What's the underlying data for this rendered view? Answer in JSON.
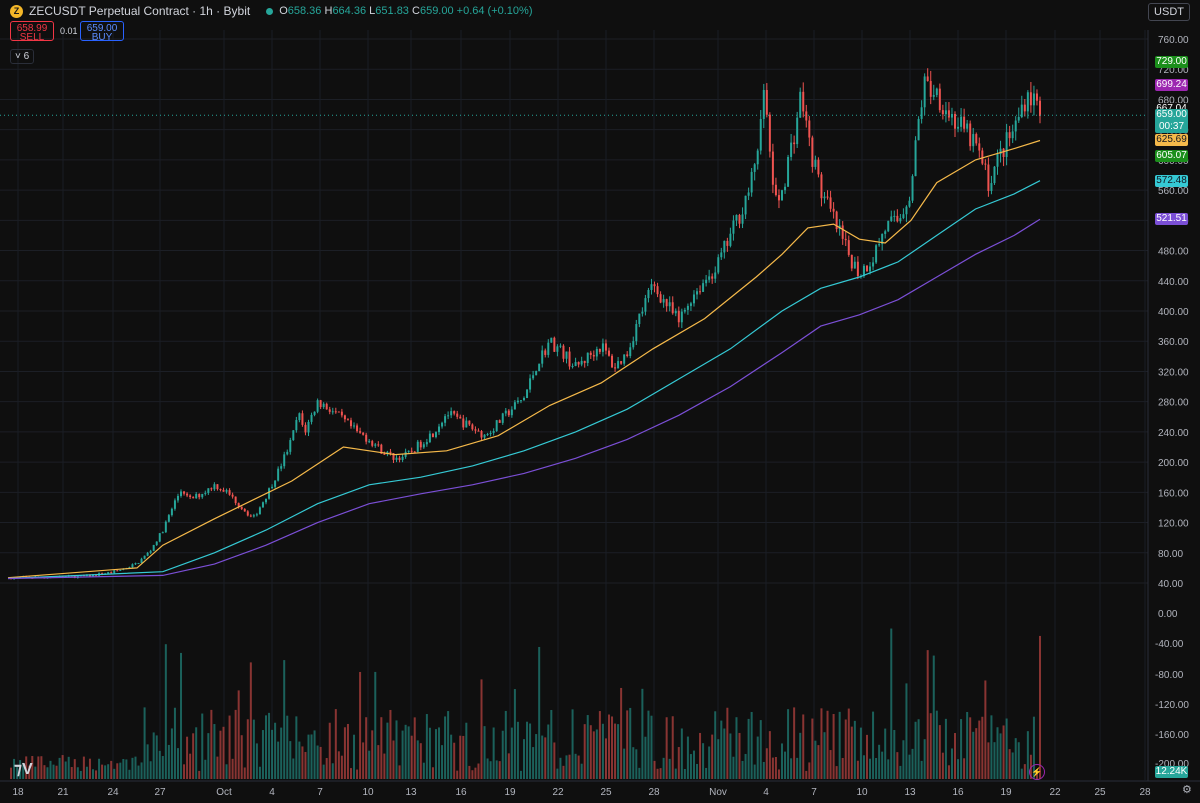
{
  "header": {
    "title": "ZECUSDT Perpetual Contract · 1h · Bybit",
    "ohlc": [
      {
        "k": "O",
        "v": "658.36"
      },
      {
        "k": "H",
        "v": "664.36"
      },
      {
        "k": "L",
        "v": "651.83"
      },
      {
        "k": "C",
        "v": "659.00 +0.64 (+0.10%)"
      }
    ]
  },
  "trade": {
    "sell_price": "658.99",
    "sell_label": "SELL",
    "spread": "0.01",
    "buy_price": "659.00",
    "buy_label": "BUY"
  },
  "indicators_toggle": "6",
  "currency": "USDT",
  "volume_label": "12.24K",
  "colors": {
    "bg": "#0f0f0f",
    "up": "#26a69a",
    "down": "#ef5350",
    "ema_orange": "#f5b94a",
    "ema_cyan": "#35c9d4",
    "ema_purple": "#7b4fd6"
  },
  "price_labels": [
    {
      "text": "729.00",
      "value": 729.0,
      "bg": "#1b8f1b",
      "fg": "#ffffff"
    },
    {
      "text": "699.24",
      "value": 699.24,
      "bg": "#9c27b0",
      "fg": "#ffffff"
    },
    {
      "text": "667.04",
      "value": 667.04,
      "bg": "#0f0f0f",
      "fg": "#ffffff"
    },
    {
      "text": "659.00",
      "value": 659.0,
      "bg": "#26a69a",
      "fg": "#ffffff",
      "sub": "00:37"
    },
    {
      "text": "625.69",
      "value": 625.69,
      "bg": "#f5b94a",
      "fg": "#131722"
    },
    {
      "text": "605.07",
      "value": 605.07,
      "bg": "#1b8f1b",
      "fg": "#ffffff"
    },
    {
      "text": "572.48",
      "value": 572.48,
      "bg": "#35c9d4",
      "fg": "#131722"
    },
    {
      "text": "521.51",
      "value": 521.51,
      "bg": "#7b4fd6",
      "fg": "#ffffff"
    }
  ],
  "chart_data": {
    "type": "candlestick",
    "title": "ZECUSDT Perpetual Contract · 1h · Bybit",
    "ylim": [
      40,
      760
    ],
    "yticks": [
      760,
      720,
      680,
      640,
      600,
      560,
      520,
      480,
      440,
      400,
      360,
      320,
      280,
      240,
      200,
      160,
      120,
      80,
      40,
      0
    ],
    "osc_ticks": [
      -40,
      -80,
      -120,
      -160,
      -200
    ],
    "xticks": [
      "18",
      "21",
      "24",
      "27",
      "Oct",
      "4",
      "7",
      "10",
      "13",
      "16",
      "19",
      "22",
      "25",
      "28",
      "Nov",
      "4",
      "7",
      "10",
      "13",
      "16",
      "19",
      "22",
      "25",
      "28"
    ],
    "close_path": [
      [
        0,
        47
      ],
      [
        4,
        48
      ],
      [
        6,
        49
      ],
      [
        8,
        54
      ],
      [
        9,
        59
      ],
      [
        10,
        66
      ],
      [
        11,
        82
      ],
      [
        12,
        110
      ],
      [
        13,
        150
      ],
      [
        13.5,
        165
      ],
      [
        14,
        150
      ],
      [
        15,
        158
      ],
      [
        16,
        170
      ],
      [
        17,
        160
      ],
      [
        18,
        142
      ],
      [
        19,
        125
      ],
      [
        20,
        155
      ],
      [
        21,
        190
      ],
      [
        22,
        230
      ],
      [
        22.5,
        265
      ],
      [
        23,
        240
      ],
      [
        24,
        280
      ],
      [
        25,
        270
      ],
      [
        26,
        255
      ],
      [
        27,
        240
      ],
      [
        28,
        230
      ],
      [
        29,
        215
      ],
      [
        30,
        205
      ],
      [
        31,
        210
      ],
      [
        32,
        225
      ],
      [
        33,
        240
      ],
      [
        34,
        265
      ],
      [
        35,
        255
      ],
      [
        36,
        245
      ],
      [
        37,
        235
      ],
      [
        38,
        252
      ],
      [
        39,
        270
      ],
      [
        40,
        285
      ],
      [
        41,
        330
      ],
      [
        42,
        360
      ],
      [
        43,
        345
      ],
      [
        44,
        325
      ],
      [
        45,
        340
      ],
      [
        46,
        355
      ],
      [
        47,
        325
      ],
      [
        48,
        345
      ],
      [
        49,
        395
      ],
      [
        50,
        435
      ],
      [
        51,
        410
      ],
      [
        52,
        385
      ],
      [
        53,
        420
      ],
      [
        54,
        440
      ],
      [
        55,
        460
      ],
      [
        56,
        500
      ],
      [
        57,
        540
      ],
      [
        58,
        590
      ],
      [
        58.5,
        700
      ],
      [
        59,
        620
      ],
      [
        59.5,
        540
      ],
      [
        60,
        560
      ],
      [
        61,
        640
      ],
      [
        61.5,
        690
      ],
      [
        62,
        630
      ],
      [
        63,
        560
      ],
      [
        64,
        520
      ],
      [
        65,
        480
      ],
      [
        66,
        450
      ],
      [
        67,
        470
      ],
      [
        68,
        510
      ],
      [
        69,
        520
      ],
      [
        70,
        560
      ],
      [
        70.5,
        640
      ],
      [
        71,
        700
      ],
      [
        72,
        690
      ],
      [
        73,
        660
      ],
      [
        74,
        640
      ],
      [
        75,
        620
      ],
      [
        76,
        570
      ],
      [
        77,
        610
      ],
      [
        78,
        640
      ],
      [
        79,
        690
      ],
      [
        80,
        670
      ]
    ],
    "ema_orange": [
      [
        0,
        47
      ],
      [
        10,
        60
      ],
      [
        12,
        90
      ],
      [
        16,
        125
      ],
      [
        22,
        175
      ],
      [
        26,
        220
      ],
      [
        30,
        210
      ],
      [
        34,
        215
      ],
      [
        38,
        235
      ],
      [
        42,
        275
      ],
      [
        46,
        305
      ],
      [
        50,
        350
      ],
      [
        54,
        390
      ],
      [
        58,
        445
      ],
      [
        60,
        475
      ],
      [
        62,
        510
      ],
      [
        64,
        515
      ],
      [
        66,
        495
      ],
      [
        68,
        490
      ],
      [
        70,
        520
      ],
      [
        72,
        570
      ],
      [
        75,
        600
      ],
      [
        78,
        615
      ],
      [
        80,
        625.69
      ]
    ],
    "ema_cyan": [
      [
        0,
        46
      ],
      [
        12,
        55
      ],
      [
        16,
        80
      ],
      [
        20,
        110
      ],
      [
        24,
        145
      ],
      [
        28,
        170
      ],
      [
        32,
        180
      ],
      [
        36,
        195
      ],
      [
        40,
        215
      ],
      [
        44,
        240
      ],
      [
        48,
        270
      ],
      [
        52,
        310
      ],
      [
        56,
        350
      ],
      [
        60,
        400
      ],
      [
        63,
        430
      ],
      [
        66,
        445
      ],
      [
        69,
        465
      ],
      [
        72,
        500
      ],
      [
        75,
        535
      ],
      [
        78,
        555
      ],
      [
        80,
        572.48
      ]
    ],
    "ema_purple": [
      [
        0,
        46
      ],
      [
        12,
        50
      ],
      [
        16,
        65
      ],
      [
        20,
        90
      ],
      [
        24,
        120
      ],
      [
        28,
        145
      ],
      [
        32,
        158
      ],
      [
        36,
        170
      ],
      [
        40,
        185
      ],
      [
        44,
        205
      ],
      [
        48,
        230
      ],
      [
        52,
        262
      ],
      [
        56,
        300
      ],
      [
        60,
        345
      ],
      [
        63,
        380
      ],
      [
        66,
        395
      ],
      [
        69,
        415
      ],
      [
        72,
        445
      ],
      [
        75,
        475
      ],
      [
        78,
        500
      ],
      [
        80,
        521.51
      ]
    ]
  }
}
